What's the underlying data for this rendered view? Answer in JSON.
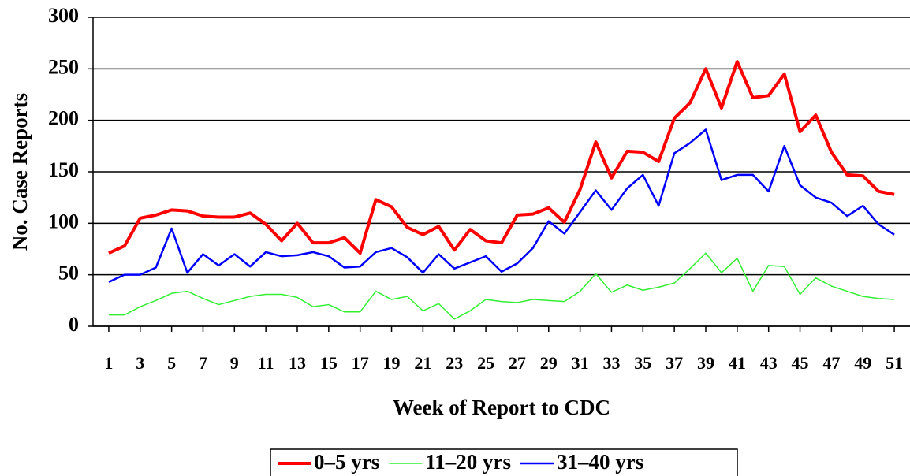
{
  "chart_data": {
    "type": "line",
    "x_label": "Week of Report to CDC",
    "y_label": "No. Case Reports",
    "x": [
      1,
      2,
      3,
      4,
      5,
      6,
      7,
      8,
      9,
      10,
      11,
      12,
      13,
      14,
      15,
      16,
      17,
      18,
      19,
      20,
      21,
      22,
      23,
      24,
      25,
      26,
      27,
      28,
      29,
      30,
      31,
      32,
      33,
      34,
      35,
      36,
      37,
      38,
      39,
      40,
      41,
      42,
      43,
      44,
      45,
      46,
      47,
      48,
      49,
      50,
      51
    ],
    "xlim": [
      0,
      52
    ],
    "xticks": [
      1,
      3,
      5,
      7,
      9,
      11,
      13,
      15,
      17,
      19,
      21,
      23,
      25,
      27,
      29,
      31,
      33,
      35,
      37,
      39,
      41,
      43,
      45,
      47,
      49,
      51
    ],
    "ylim": [
      0,
      300
    ],
    "yticks": [
      0,
      50,
      100,
      150,
      200,
      250,
      300
    ],
    "grid": true,
    "legend": "bottom",
    "series": [
      {
        "name": "0–5 yrs",
        "color": "#ff0000",
        "values": [
          71,
          78,
          105,
          108,
          113,
          112,
          107,
          106,
          106,
          110,
          99,
          83,
          100,
          81,
          81,
          86,
          71,
          123,
          116,
          96,
          89,
          97,
          74,
          94,
          83,
          81,
          108,
          109,
          115,
          101,
          133,
          179,
          144,
          170,
          169,
          160,
          202,
          217,
          250,
          212,
          257,
          222,
          224,
          245,
          189,
          205,
          169,
          147,
          146,
          131,
          128
        ]
      },
      {
        "name": "11–20 yrs",
        "color": "#33ee33",
        "values": [
          11,
          11,
          19,
          25,
          32,
          34,
          27,
          21,
          25,
          29,
          31,
          31,
          28,
          19,
          21,
          14,
          14,
          34,
          26,
          29,
          15,
          22,
          7,
          15,
          26,
          24,
          23,
          26,
          25,
          24,
          34,
          51,
          33,
          40,
          35,
          38,
          42,
          56,
          71,
          52,
          66,
          34,
          59,
          58,
          31,
          47,
          39,
          34,
          29,
          27,
          26
        ]
      },
      {
        "name": "31–40 yrs",
        "color": "#0000ff",
        "values": [
          43,
          50,
          50,
          57,
          95,
          52,
          70,
          59,
          70,
          58,
          72,
          68,
          69,
          72,
          68,
          57,
          58,
          72,
          76,
          67,
          52,
          70,
          56,
          62,
          68,
          53,
          61,
          76,
          102,
          90,
          111,
          132,
          113,
          134,
          147,
          117,
          168,
          178,
          191,
          142,
          147,
          147,
          131,
          175,
          137,
          125,
          120,
          107,
          117,
          99,
          89
        ]
      }
    ]
  }
}
